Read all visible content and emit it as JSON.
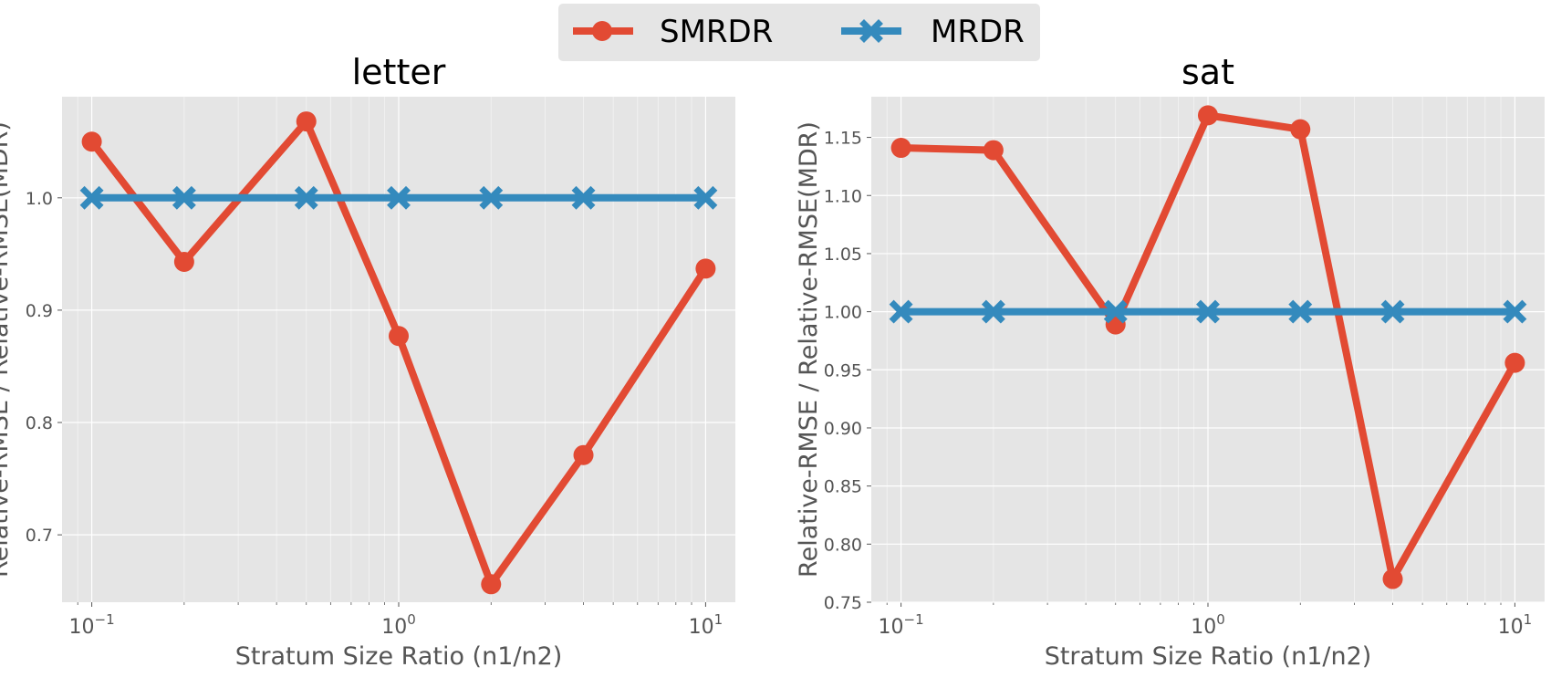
{
  "legend": {
    "entries": [
      {
        "name": "SMRDR",
        "color": "#E24A33",
        "marker": "circle"
      },
      {
        "name": "MRDR",
        "color": "#348ABD",
        "marker": "x"
      }
    ]
  },
  "chart_data": [
    {
      "type": "line",
      "title": "letter",
      "xlabel": "Stratum Size Ratio (n1/n2)",
      "ylabel": "Relative-RMSE / Relative-RMSE(MDR)",
      "xscale": "log",
      "xlim": [
        0.08,
        12.5
      ],
      "ylim": [
        0.64,
        1.09
      ],
      "x": [
        0.1,
        0.2,
        0.5,
        1,
        2,
        4,
        10
      ],
      "xticks": [
        {
          "base": "10",
          "exp": "−1",
          "value": 0.1
        },
        {
          "base": "10",
          "exp": "0",
          "value": 1
        },
        {
          "base": "10",
          "exp": "1",
          "value": 10
        }
      ],
      "yticks": [
        {
          "value": 0.7,
          "label": "0.7"
        },
        {
          "value": 0.8,
          "label": "0.8"
        },
        {
          "value": 0.9,
          "label": "0.9"
        },
        {
          "value": 1.0,
          "label": "1.0"
        }
      ],
      "series": [
        {
          "name": "SMRDR",
          "color": "#E24A33",
          "marker": "circle",
          "values": [
            1.05,
            0.943,
            1.068,
            0.877,
            0.656,
            0.771,
            0.937
          ]
        },
        {
          "name": "MRDR",
          "color": "#348ABD",
          "marker": "x",
          "values": [
            1.0,
            1.0,
            1.0,
            1.0,
            1.0,
            1.0,
            1.0
          ]
        }
      ]
    },
    {
      "type": "line",
      "title": "sat",
      "xlabel": "Stratum Size Ratio (n1/n2)",
      "ylabel": "Relative-RMSE / Relative-RMSE(MDR)",
      "xscale": "log",
      "xlim": [
        0.08,
        12.5
      ],
      "ylim": [
        0.75,
        1.185
      ],
      "x": [
        0.1,
        0.2,
        0.5,
        1,
        2,
        4,
        10
      ],
      "xticks": [
        {
          "base": "10",
          "exp": "−1",
          "value": 0.1
        },
        {
          "base": "10",
          "exp": "0",
          "value": 1
        },
        {
          "base": "10",
          "exp": "1",
          "value": 10
        }
      ],
      "yticks": [
        {
          "value": 0.75,
          "label": "0.75"
        },
        {
          "value": 0.8,
          "label": "0.80"
        },
        {
          "value": 0.85,
          "label": "0.85"
        },
        {
          "value": 0.9,
          "label": "0.90"
        },
        {
          "value": 0.95,
          "label": "0.95"
        },
        {
          "value": 1.0,
          "label": "1.00"
        },
        {
          "value": 1.05,
          "label": "1.05"
        },
        {
          "value": 1.1,
          "label": "1.10"
        },
        {
          "value": 1.15,
          "label": "1.15"
        }
      ],
      "series": [
        {
          "name": "SMRDR",
          "color": "#E24A33",
          "marker": "circle",
          "values": [
            1.141,
            1.139,
            0.989,
            1.169,
            1.157,
            0.77,
            0.956
          ]
        },
        {
          "name": "MRDR",
          "color": "#348ABD",
          "marker": "x",
          "values": [
            1.0,
            1.0,
            1.0,
            1.0,
            1.0,
            1.0,
            1.0
          ]
        }
      ]
    }
  ]
}
